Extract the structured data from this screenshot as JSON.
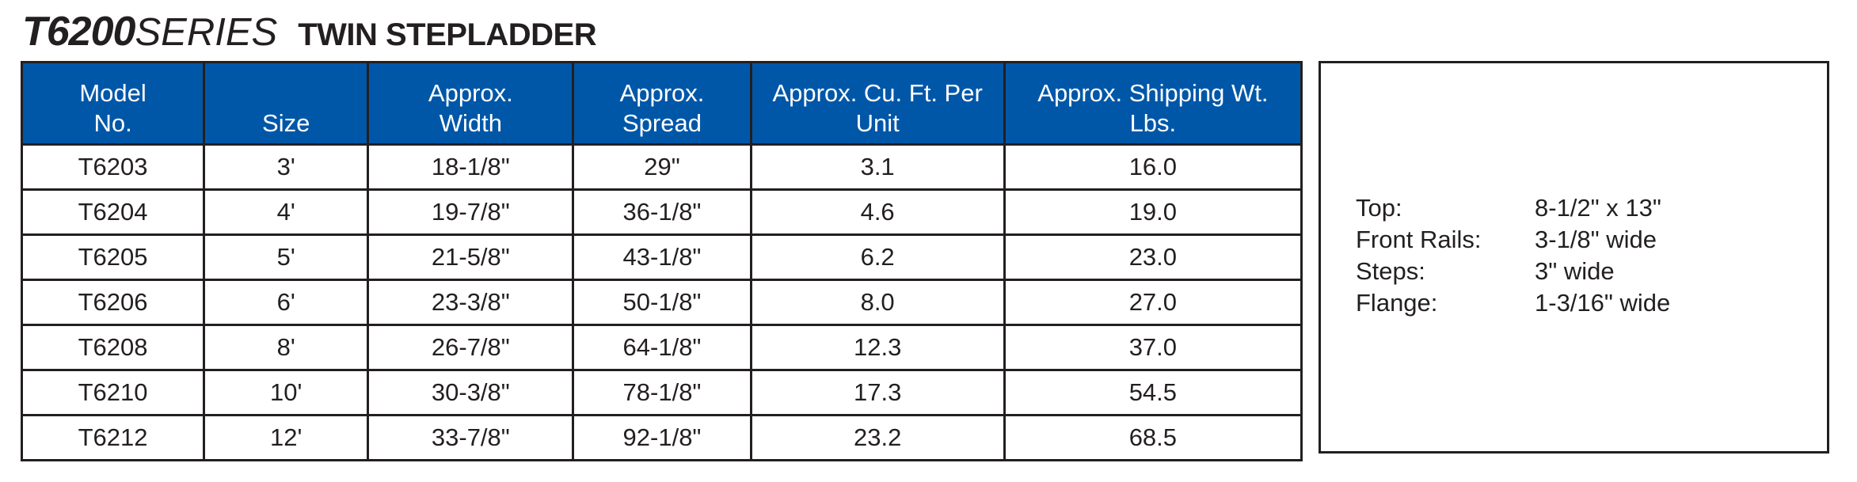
{
  "title": {
    "model": "T6200",
    "series": "SERIES",
    "name": "TWIN STEPLADDER"
  },
  "table": {
    "headers": [
      [
        "Model",
        "No."
      ],
      [
        "Size"
      ],
      [
        "Approx.",
        "Width"
      ],
      [
        "Approx.",
        "Spread"
      ],
      [
        "Approx. Cu. Ft. Per",
        "Unit"
      ],
      [
        "Approx. Shipping Wt.",
        "Lbs."
      ]
    ],
    "rows": [
      [
        "T6203",
        "3'",
        "18-1/8\"",
        "29\"",
        "3.1",
        "16.0"
      ],
      [
        "T6204",
        "4'",
        "19-7/8\"",
        "36-1/8\"",
        "4.6",
        "19.0"
      ],
      [
        "T6205",
        "5'",
        "21-5/8\"",
        "43-1/8\"",
        "6.2",
        "23.0"
      ],
      [
        "T6206",
        "6'",
        "23-3/8\"",
        "50-1/8\"",
        "8.0",
        "27.0"
      ],
      [
        "T6208",
        "8'",
        "26-7/8\"",
        "64-1/8\"",
        "12.3",
        "37.0"
      ],
      [
        "T6210",
        "10'",
        "30-3/8\"",
        "78-1/8\"",
        "17.3",
        "54.5"
      ],
      [
        "T6212",
        "12'",
        "33-7/8\"",
        "92-1/8\"",
        "23.2",
        "68.5"
      ]
    ]
  },
  "features": [
    {
      "label": "Top:",
      "value": "8-1/2\" x 13\""
    },
    {
      "label": "Front Rails:",
      "value": "3-1/8\" wide"
    },
    {
      "label": "Steps:",
      "value": "3\" wide"
    },
    {
      "label": "Flange:",
      "value": "1-3/16\" wide"
    }
  ],
  "colors": {
    "header_blue": "#0057a8",
    "rule": "#231f20"
  }
}
